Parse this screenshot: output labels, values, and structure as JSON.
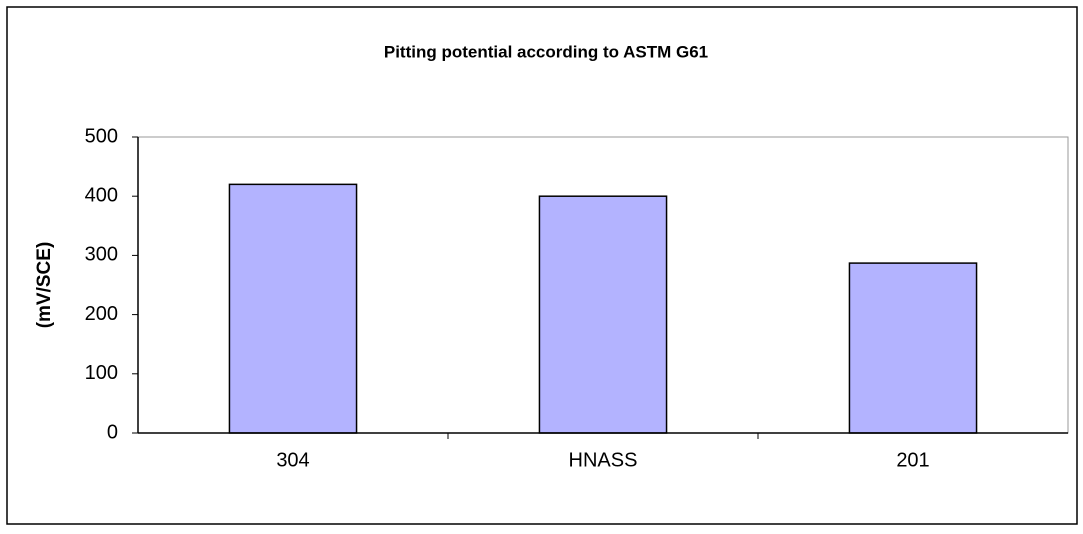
{
  "chart_data": {
    "type": "bar",
    "title": "Pitting potential according to ASTM G61",
    "y_label": "(mV/SCE)",
    "categories": [
      "304",
      "HNASS",
      "201"
    ],
    "values": [
      420,
      400,
      287
    ],
    "color": "#b3b3ff",
    "ylim": [
      0,
      500
    ],
    "yticks": [
      0,
      100,
      200,
      300,
      400,
      500
    ],
    "grid": false
  }
}
